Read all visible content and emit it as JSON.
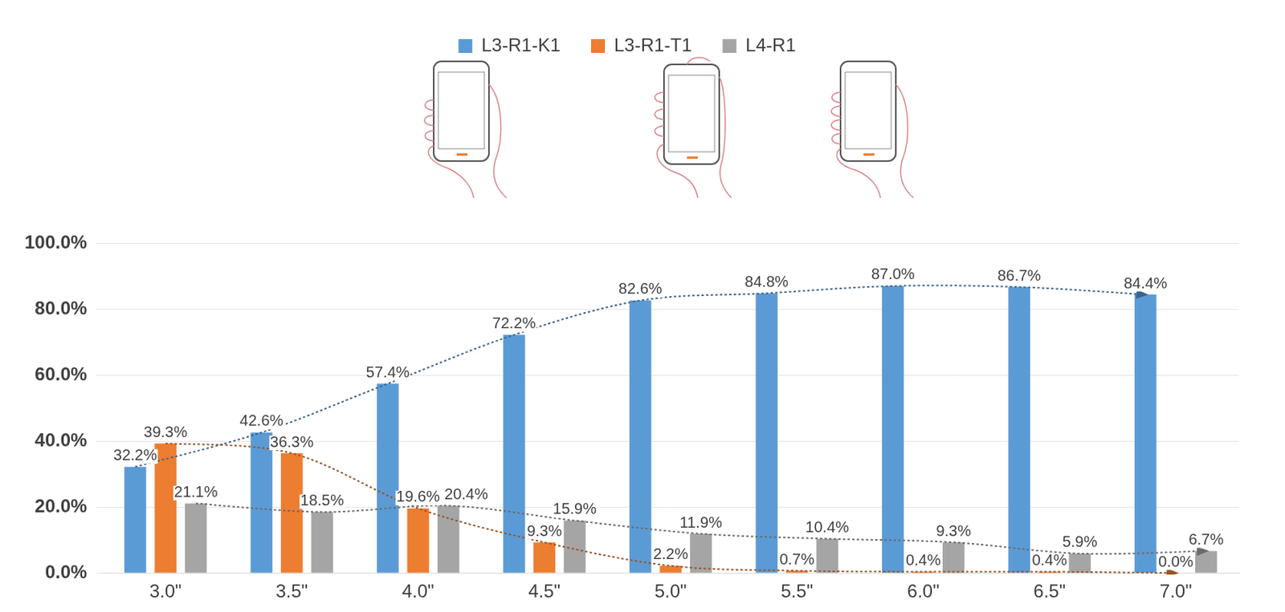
{
  "chart_data": {
    "type": "bar",
    "categories": [
      "3.0\"",
      "3.5\"",
      "4.0\"",
      "4.5\"",
      "5.0\"",
      "5.5\"",
      "6.0\"",
      "6.5\"",
      "7.0\""
    ],
    "series": [
      {
        "name": "L3-R1-K1",
        "color": "#5b9bd5",
        "values": [
          32.2,
          42.6,
          57.4,
          72.2,
          82.6,
          84.8,
          87.0,
          86.7,
          84.4
        ],
        "value_labels": [
          "32.2%",
          "42.6%",
          "57.4%",
          "72.2%",
          "82.6%",
          "84.8%",
          "87.0%",
          "86.7%",
          "84.4%"
        ]
      },
      {
        "name": "L3-R1-T1",
        "color": "#ed7d31",
        "values": [
          39.3,
          36.3,
          19.6,
          9.3,
          2.2,
          0.7,
          0.4,
          0.4,
          0.0
        ],
        "value_labels": [
          "39.3%",
          "36.3%",
          "19.6%",
          "9.3%",
          "2.2%",
          "0.7%",
          "0.4%",
          "0.4%",
          "0.0%"
        ]
      },
      {
        "name": "L4-R1",
        "color": "#a5a5a5",
        "values": [
          21.1,
          18.5,
          20.4,
          15.9,
          11.9,
          10.4,
          9.3,
          5.9,
          6.7
        ],
        "value_labels": [
          "21.1%",
          "18.5%",
          "20.4%",
          "15.9%",
          "11.9%",
          "10.4%",
          "9.3%",
          "5.9%",
          "6.7%"
        ]
      }
    ],
    "ylim": [
      0,
      100
    ],
    "yticks": [
      {
        "value": 0,
        "label": "0.0%"
      },
      {
        "value": 20,
        "label": "20.0%"
      },
      {
        "value": 40,
        "label": "40.0%"
      },
      {
        "value": 60,
        "label": "60.0%"
      },
      {
        "value": 80,
        "label": "80.0%"
      },
      {
        "value": 100,
        "label": "100.0%"
      }
    ],
    "grid": true,
    "legend": "top",
    "data_labels": true
  }
}
